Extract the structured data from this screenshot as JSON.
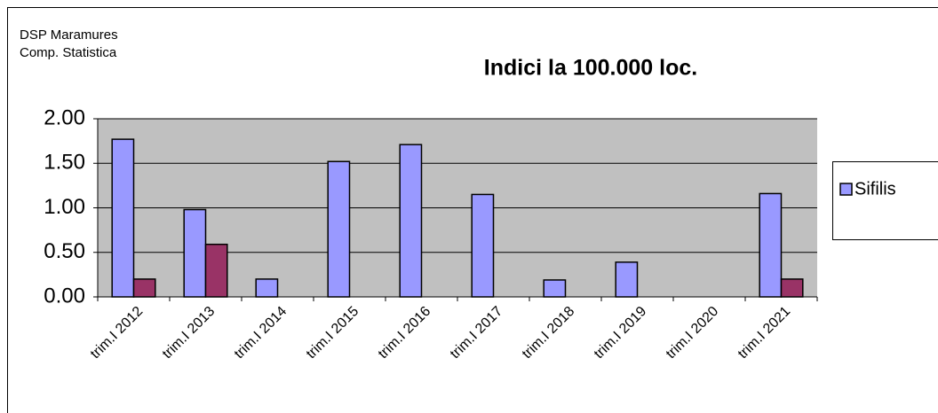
{
  "chart_data": {
    "type": "bar",
    "title": "Indici la 100.000 loc.",
    "annotations": [
      "DSP Maramures",
      "Comp. Statistica"
    ],
    "categories": [
      "trim.I 2012",
      "trim.I 2013",
      "trim.I 2014",
      "trim.I 2015",
      "trim.I 2016",
      "trim.I 2017",
      "trim.I 2018",
      "trim.I 2019",
      "trim.I 2020",
      "trim.I 2021"
    ],
    "series": [
      {
        "name": "Sifilis",
        "color": "#9999ff",
        "values": [
          1.77,
          0.98,
          0.2,
          1.52,
          1.71,
          1.15,
          0.19,
          0.39,
          null,
          1.16
        ]
      },
      {
        "color": "#993366",
        "values": [
          0.2,
          0.59,
          null,
          null,
          null,
          null,
          null,
          null,
          null,
          0.2
        ]
      }
    ],
    "ylim": [
      0,
      2
    ],
    "yticks": [
      {
        "value": 0,
        "label": "0.00"
      },
      {
        "value": 0.5,
        "label": "0.50"
      },
      {
        "value": 1,
        "label": "1.00"
      },
      {
        "value": 1.5,
        "label": "1.50"
      },
      {
        "value": 2,
        "label": "2.00"
      }
    ],
    "grid": true,
    "legend": "right"
  }
}
